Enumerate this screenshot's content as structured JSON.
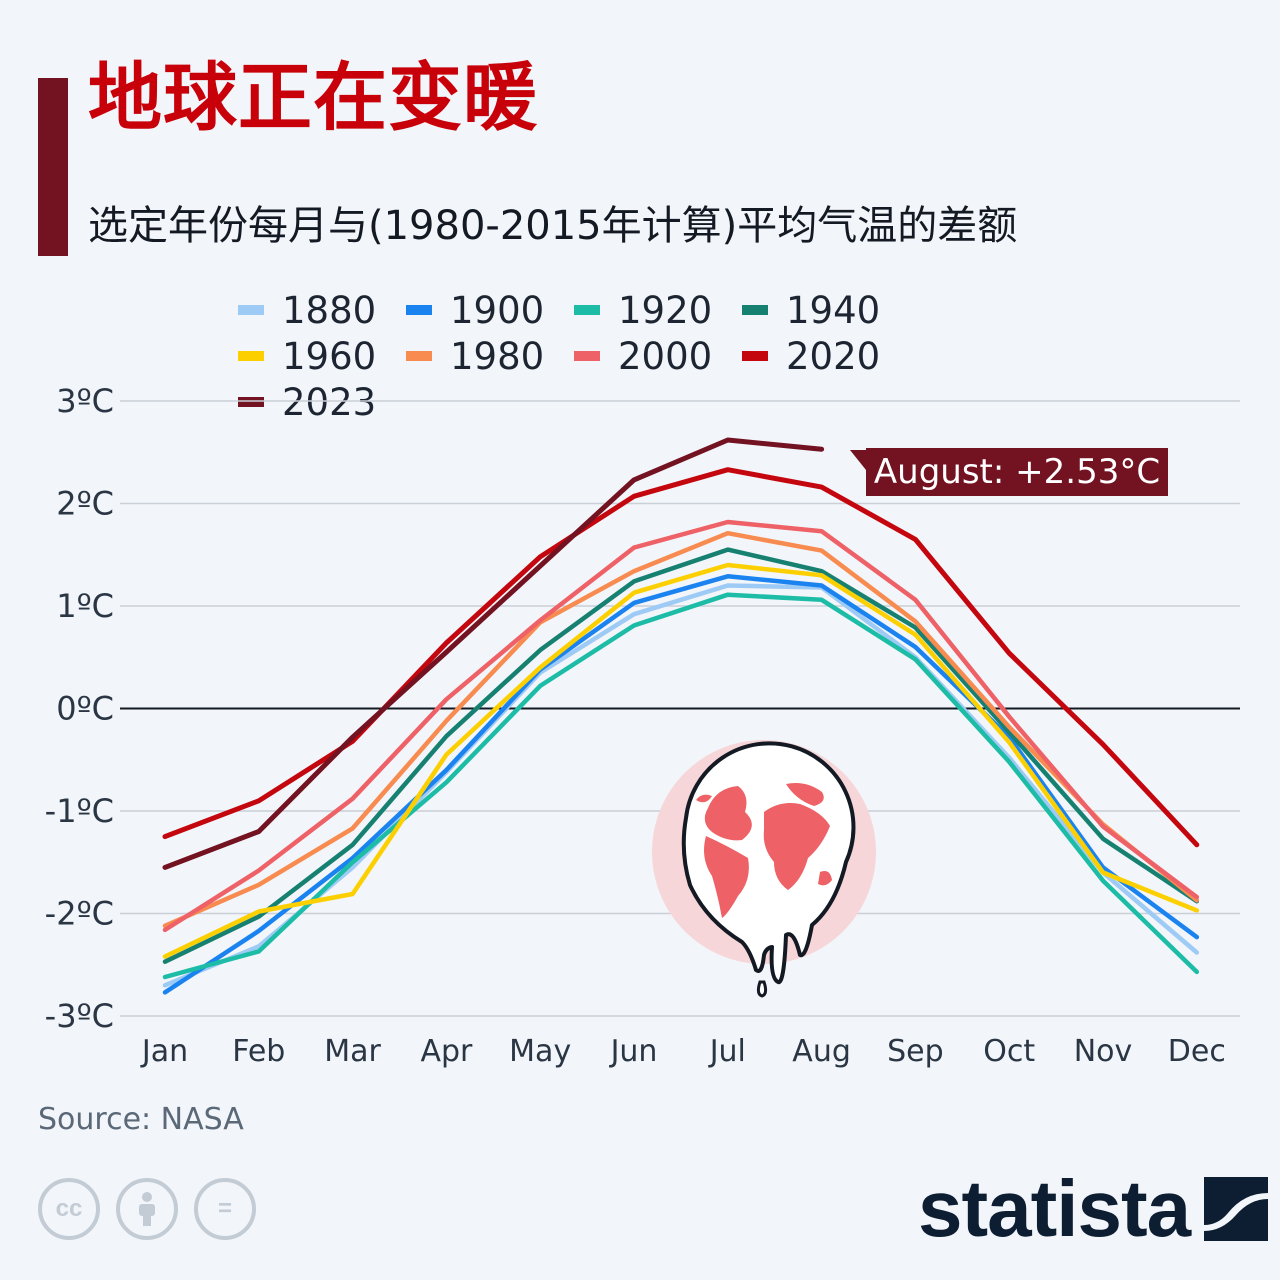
{
  "title": "地球正在变暖",
  "subtitle": "选定年份每月与(1980-2015年计算)平均气温的差额",
  "source": "Source: NASA",
  "brand": "statista",
  "cc_icons": [
    {
      "icon": "cc-icon",
      "text": "cc"
    },
    {
      "icon": "attribution-icon",
      "text": ""
    },
    {
      "icon": "no-derivatives-icon",
      "text": "="
    }
  ],
  "callout": "August: +2.53°C",
  "colors": {
    "title": "#c8000a",
    "accent": "#731220",
    "callout_bg": "#731220"
  },
  "chart_data": {
    "type": "line",
    "categories": [
      "Jan",
      "Feb",
      "Mar",
      "Apr",
      "May",
      "Jun",
      "Jul",
      "Aug",
      "Sep",
      "Oct",
      "Nov",
      "Dec"
    ],
    "ylim": [
      -3,
      3
    ],
    "yticks": [
      3,
      2,
      1,
      0,
      -1,
      -2,
      -3
    ],
    "ytick_labels": [
      "3ºC",
      "2ºC",
      "1ºC",
      "0ºC",
      "-1ºC",
      "-2ºC",
      "-3ºC"
    ],
    "grid": true,
    "legend_position": "top",
    "series": [
      {
        "name": "1880",
        "color": "#9dcbf5",
        "values": [
          -2.7,
          -2.32,
          -1.55,
          -0.62,
          0.35,
          0.92,
          1.2,
          1.18,
          0.5,
          -0.48,
          -1.6,
          -2.38
        ]
      },
      {
        "name": "1900",
        "color": "#1a83f0",
        "values": [
          -2.77,
          -2.17,
          -1.46,
          -0.6,
          0.38,
          1.03,
          1.29,
          1.2,
          0.6,
          -0.28,
          -1.55,
          -2.23
        ]
      },
      {
        "name": "1920",
        "color": "#1dbca6",
        "values": [
          -2.62,
          -2.37,
          -1.5,
          -0.72,
          0.22,
          0.81,
          1.11,
          1.06,
          0.48,
          -0.52,
          -1.68,
          -2.57
        ]
      },
      {
        "name": "1940",
        "color": "#168071",
        "values": [
          -2.47,
          -2.03,
          -1.33,
          -0.27,
          0.57,
          1.24,
          1.55,
          1.34,
          0.79,
          -0.23,
          -1.27,
          -1.88
        ]
      },
      {
        "name": "1960",
        "color": "#fcd000",
        "values": [
          -2.42,
          -1.98,
          -1.81,
          -0.45,
          0.4,
          1.13,
          1.4,
          1.3,
          0.72,
          -0.33,
          -1.6,
          -1.97
        ]
      },
      {
        "name": "1980",
        "color": "#f88b50",
        "values": [
          -2.12,
          -1.72,
          -1.17,
          -0.12,
          0.84,
          1.34,
          1.71,
          1.54,
          0.85,
          -0.18,
          -1.13,
          -1.87
        ]
      },
      {
        "name": "2000",
        "color": "#ee6166",
        "values": [
          -2.16,
          -1.58,
          -0.88,
          0.09,
          0.86,
          1.57,
          1.82,
          1.73,
          1.06,
          -0.08,
          -1.15,
          -1.84
        ]
      },
      {
        "name": "2020",
        "color": "#c4060e",
        "values": [
          -1.25,
          -0.9,
          -0.32,
          0.64,
          1.48,
          2.07,
          2.33,
          2.16,
          1.65,
          0.54,
          -0.35,
          -1.33
        ]
      },
      {
        "name": "2023",
        "color": "#731220",
        "values": [
          -1.55,
          -1.2,
          -0.28,
          0.55,
          1.39,
          2.23,
          2.62,
          2.53,
          null,
          null,
          null,
          null
        ]
      }
    ]
  }
}
